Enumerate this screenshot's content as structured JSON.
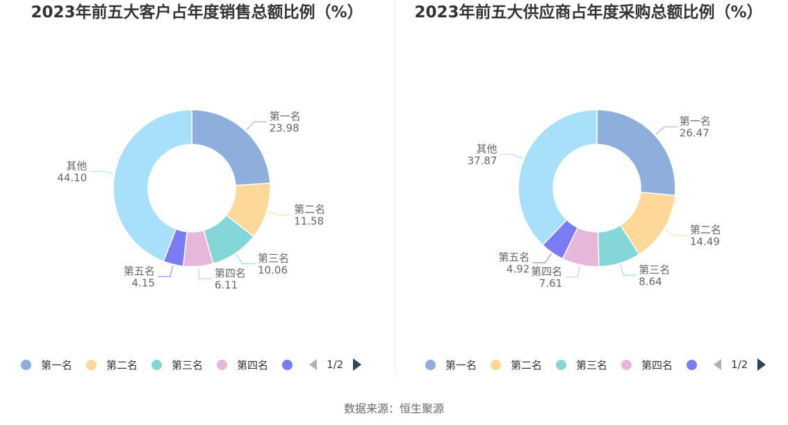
{
  "chart_data": [
    {
      "type": "pie",
      "title": "2023年前五大客户占年度销售总额比例（%）",
      "categories": [
        "第一名",
        "第二名",
        "第三名",
        "第四名",
        "第五名",
        "其他"
      ],
      "values": [
        23.98,
        11.58,
        10.06,
        6.11,
        4.15,
        44.1
      ],
      "value_labels": [
        "23.98",
        "11.58",
        "10.06",
        "6.11",
        "4.15",
        "44.10"
      ],
      "colors": [
        "#8eaedc",
        "#fdd898",
        "#85d6d9",
        "#e6b7d8",
        "#7a7cf4",
        "#a8dffa"
      ],
      "legend": {
        "items": [
          "第一名",
          "第二名",
          "第三名",
          "第四名"
        ],
        "page": "1/2",
        "placement": "bottom"
      }
    },
    {
      "type": "pie",
      "title": "2023年前五大供应商占年度采购总额比例（%）",
      "categories": [
        "第一名",
        "第二名",
        "第三名",
        "第四名",
        "第五名",
        "其他"
      ],
      "values": [
        26.47,
        14.49,
        8.64,
        7.61,
        4.92,
        37.87
      ],
      "value_labels": [
        "26.47",
        "14.49",
        "8.64",
        "7.61",
        "4.92",
        "37.87"
      ],
      "colors": [
        "#8eaedc",
        "#fdd898",
        "#85d6d9",
        "#e6b7d8",
        "#7a7cf4",
        "#a8dffa"
      ],
      "legend": {
        "items": [
          "第一名",
          "第二名",
          "第三名",
          "第四名"
        ],
        "page": "1/2",
        "placement": "bottom"
      }
    }
  ],
  "source": "数据来源：恒生聚源"
}
